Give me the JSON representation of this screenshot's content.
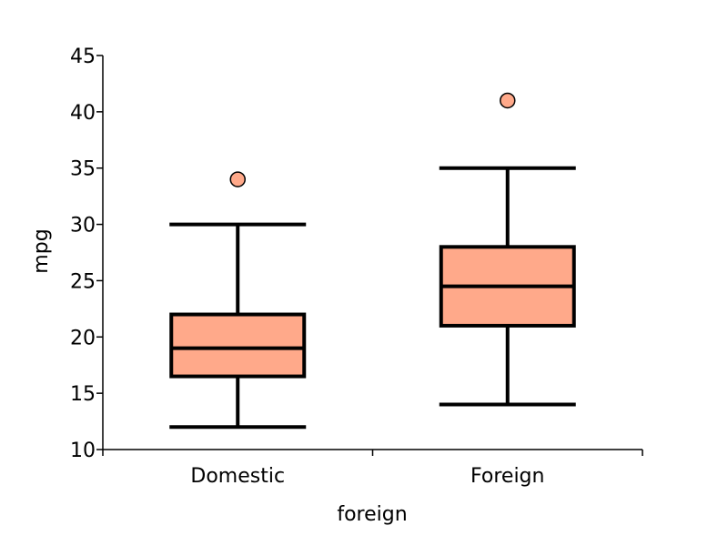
{
  "chart_data": {
    "type": "box",
    "xlabel": "foreign",
    "ylabel": "mpg",
    "ylim": [
      10,
      45
    ],
    "yticks": [
      10,
      15,
      20,
      25,
      30,
      35,
      40,
      45
    ],
    "categories": [
      "Domestic",
      "Foreign"
    ],
    "boxes": [
      {
        "category": "Domestic",
        "whisker_low": 12,
        "q1": 16.5,
        "median": 19,
        "q3": 22,
        "whisker_high": 30,
        "outliers": [
          34
        ]
      },
      {
        "category": "Foreign",
        "whisker_low": 14,
        "q1": 21,
        "median": 24.5,
        "q3": 28,
        "whisker_high": 35,
        "outliers": [
          41
        ]
      }
    ],
    "box_color": "#FFA98A",
    "line_color": "#000000",
    "grid": false
  }
}
